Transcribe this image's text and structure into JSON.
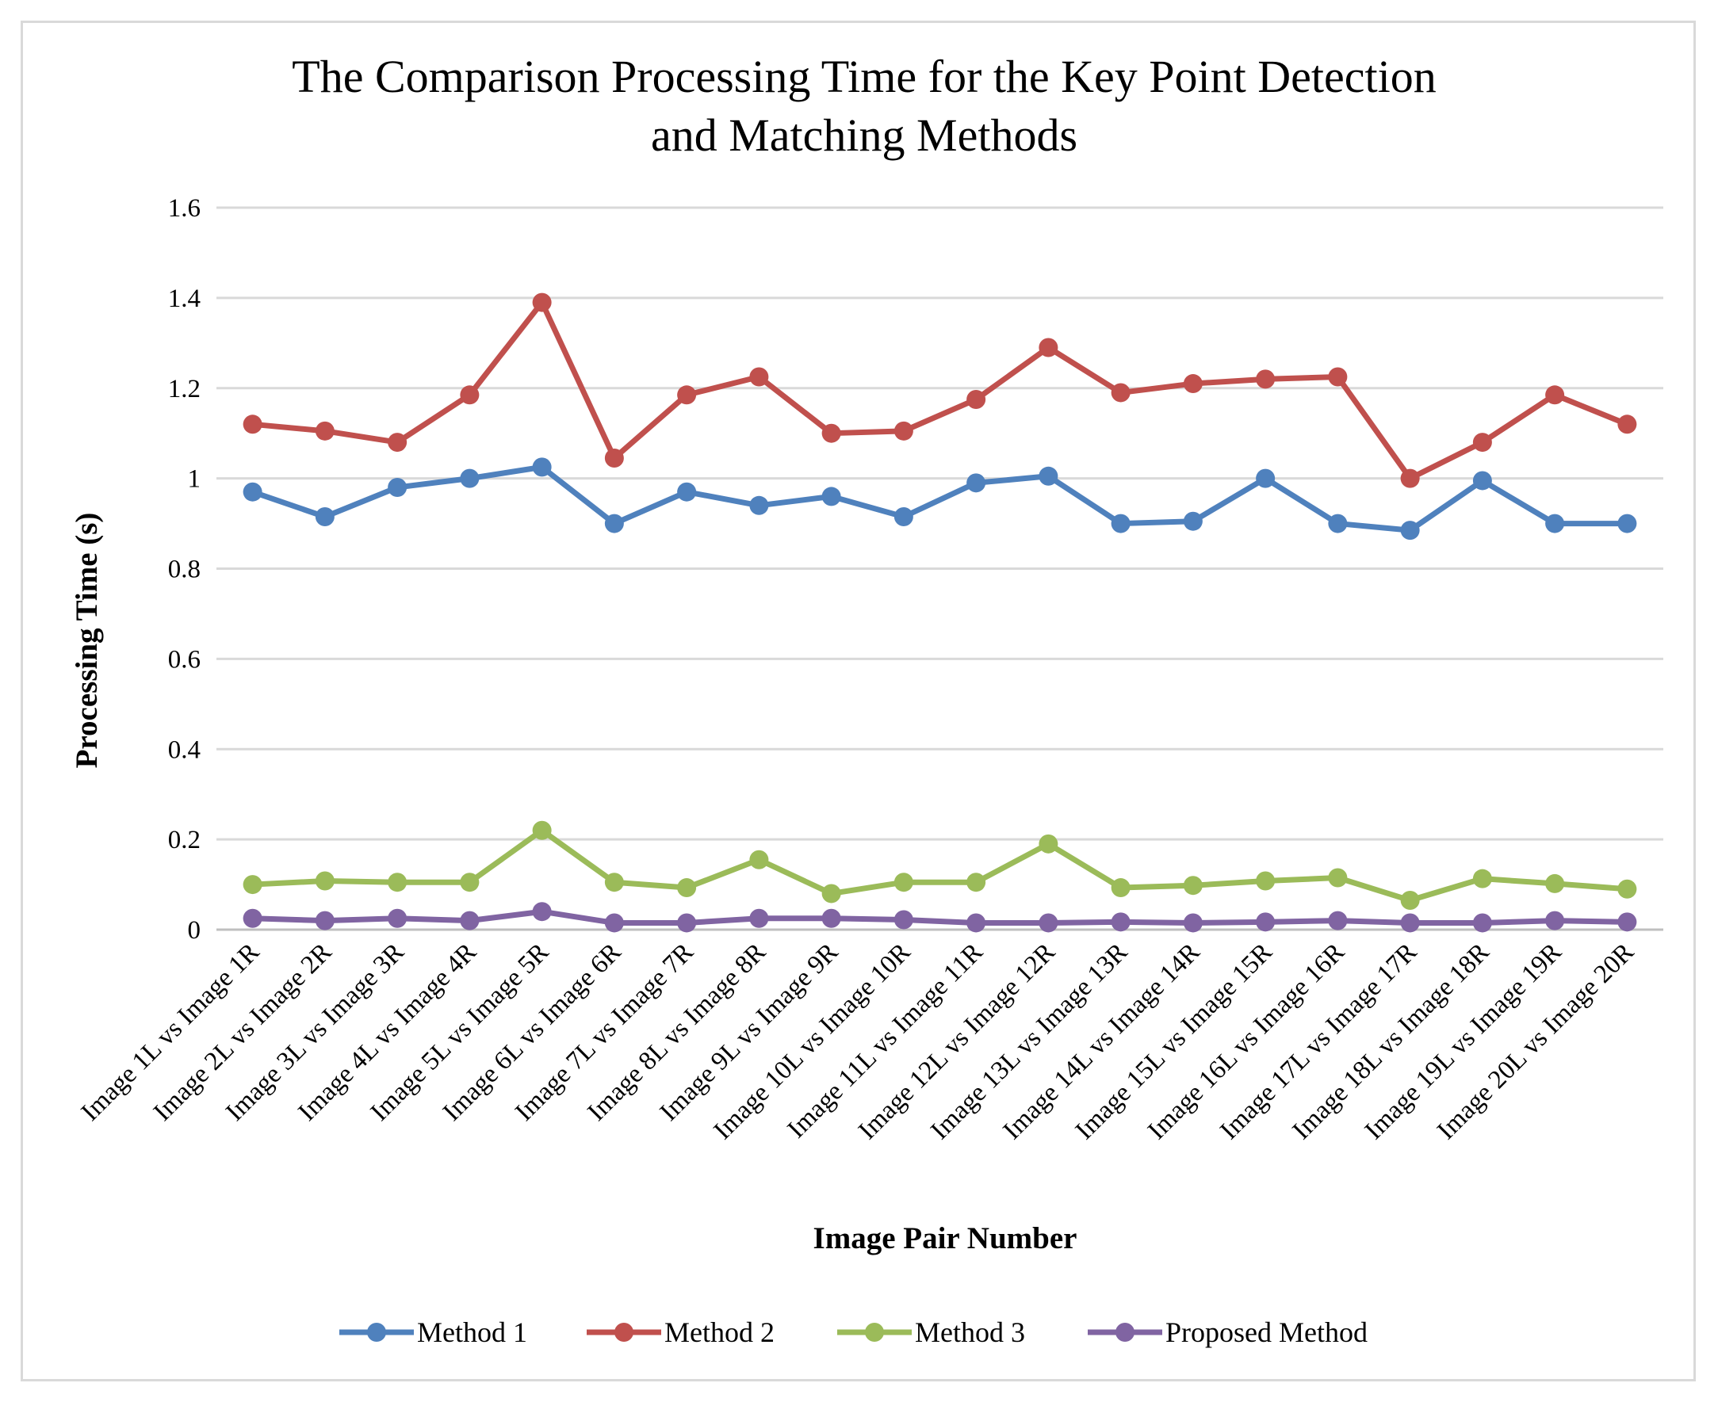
{
  "chart_data": {
    "type": "line",
    "title_lines": [
      "The Comparison  Processing  Time for the Key Point Detection",
      "and Matching  Methods"
    ],
    "xlabel": "Image Pair Number",
    "ylabel": "Processing Time  (s)",
    "ylim": [
      0,
      1.6
    ],
    "yticks": [
      0,
      0.2,
      0.4,
      0.6,
      0.8,
      1,
      1.2,
      1.4,
      1.6
    ],
    "ytick_labels": [
      "0",
      "0.2",
      "0.4",
      "0.6",
      "0.8",
      "1",
      "1.2",
      "1.4",
      "1.6"
    ],
    "grid": true,
    "legend_position": "bottom",
    "categories": [
      "Image 1L vs Image 1R",
      "Image 2L vs Image 2R",
      "Image 3L vs Image 3R",
      "Image 4L vs Image 4R",
      "Image 5L vs Image 5R",
      "Image 6L vs Image 6R",
      "Image 7L vs Image 7R",
      "Image 8L vs Image 8R",
      "Image 9L vs Image 9R",
      "Image 10L vs Image 10R",
      "Image 11L vs Image 11R",
      "Image 12L vs Image 12R",
      "Image 13L vs Image 13R",
      "Image 14L vs Image 14R",
      "Image 15L vs Image 15R",
      "Image 16L vs Image 16R",
      "Image 17L vs Image 17R",
      "Image 18L vs Image 18R",
      "Image 19L vs Image 19R",
      "Image 20L vs Image 20R"
    ],
    "series": [
      {
        "name": "Method 1",
        "color": "#4f81bd",
        "values": [
          0.97,
          0.915,
          0.98,
          1.0,
          1.025,
          0.9,
          0.97,
          0.94,
          0.96,
          0.915,
          0.99,
          1.005,
          0.9,
          0.905,
          1.0,
          0.9,
          0.885,
          0.995,
          0.9,
          0.9
        ]
      },
      {
        "name": "Method 2",
        "color": "#c0504d",
        "values": [
          1.12,
          1.105,
          1.08,
          1.185,
          1.39,
          1.045,
          1.185,
          1.225,
          1.1,
          1.105,
          1.175,
          1.29,
          1.19,
          1.21,
          1.22,
          1.225,
          1.0,
          1.08,
          1.185,
          1.12
        ]
      },
      {
        "name": "Method 3",
        "color": "#9bbb59",
        "values": [
          0.1,
          0.108,
          0.105,
          0.105,
          0.22,
          0.105,
          0.093,
          0.155,
          0.08,
          0.105,
          0.105,
          0.19,
          0.093,
          0.098,
          0.108,
          0.115,
          0.065,
          0.113,
          0.102,
          0.09
        ]
      },
      {
        "name": "Proposed Method",
        "color": "#8064a2",
        "values": [
          0.025,
          0.02,
          0.025,
          0.02,
          0.04,
          0.015,
          0.015,
          0.025,
          0.025,
          0.022,
          0.015,
          0.015,
          0.017,
          0.015,
          0.017,
          0.02,
          0.015,
          0.015,
          0.02,
          0.017
        ]
      }
    ]
  }
}
